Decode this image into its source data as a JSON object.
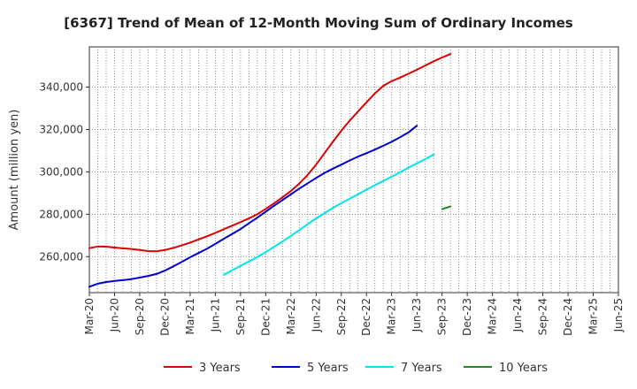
{
  "chart_data": {
    "type": "line",
    "title": "[6367]  Trend of Mean of 12-Month Moving Sum of Ordinary Incomes",
    "xlabel": "",
    "ylabel": "Amount (million yen)",
    "ylim": [
      243000,
      359000
    ],
    "yticks": [
      260000,
      280000,
      300000,
      320000,
      340000
    ],
    "ytick_labels": [
      "260,000",
      "280,000",
      "300,000",
      "320,000",
      "340,000"
    ],
    "xtick_labels": [
      "Mar-20",
      "Jun-20",
      "Sep-20",
      "Dec-20",
      "Mar-21",
      "Jun-21",
      "Sep-21",
      "Dec-21",
      "Mar-22",
      "Jun-22",
      "Sep-22",
      "Dec-22",
      "Mar-23",
      "Jun-23",
      "Sep-23",
      "Dec-23",
      "Mar-24",
      "Jun-24",
      "Sep-24",
      "Dec-24",
      "Mar-25",
      "Jun-25"
    ],
    "grid": true,
    "legend_position": "bottom",
    "series": [
      {
        "name": "3 Years",
        "color": "#dd0000",
        "points": [
          [
            0,
            264000
          ],
          [
            1,
            264800
          ],
          [
            2,
            264700
          ],
          [
            3,
            264300
          ],
          [
            4,
            263900
          ],
          [
            5,
            263600
          ],
          [
            6,
            263100
          ],
          [
            7,
            262600
          ],
          [
            8,
            262500
          ],
          [
            9,
            263100
          ],
          [
            10,
            264100
          ],
          [
            11,
            265300
          ],
          [
            12,
            266600
          ],
          [
            13,
            268100
          ],
          [
            14,
            269600
          ],
          [
            15,
            271200
          ],
          [
            16,
            272900
          ],
          [
            17,
            274600
          ],
          [
            18,
            276300
          ],
          [
            19,
            278000
          ],
          [
            20,
            280000
          ],
          [
            21,
            282500
          ],
          [
            22,
            285200
          ],
          [
            23,
            288000
          ],
          [
            24,
            291000
          ],
          [
            25,
            294500
          ],
          [
            26,
            298600
          ],
          [
            27,
            303400
          ],
          [
            28,
            308800
          ],
          [
            29,
            314200
          ],
          [
            30,
            319400
          ],
          [
            31,
            324200
          ],
          [
            32,
            328500
          ],
          [
            33,
            332800
          ],
          [
            34,
            337000
          ],
          [
            35,
            340600
          ],
          [
            36,
            342800
          ],
          [
            37,
            344500
          ],
          [
            38,
            346300
          ],
          [
            39,
            348200
          ],
          [
            40,
            350200
          ],
          [
            41,
            352200
          ],
          [
            42,
            354000
          ],
          [
            43,
            355600
          ]
        ]
      },
      {
        "name": "5 Years",
        "color": "#0000cc",
        "points": [
          [
            0,
            245800
          ],
          [
            1,
            247200
          ],
          [
            2,
            248000
          ],
          [
            3,
            248500
          ],
          [
            4,
            248900
          ],
          [
            5,
            249400
          ],
          [
            6,
            250100
          ],
          [
            7,
            250900
          ],
          [
            8,
            251800
          ],
          [
            9,
            253400
          ],
          [
            10,
            255400
          ],
          [
            11,
            257500
          ],
          [
            12,
            259700
          ],
          [
            13,
            261700
          ],
          [
            14,
            263700
          ],
          [
            15,
            266000
          ],
          [
            16,
            268400
          ],
          [
            17,
            270700
          ],
          [
            18,
            273000
          ],
          [
            19,
            275700
          ],
          [
            20,
            278400
          ],
          [
            21,
            281200
          ],
          [
            22,
            284000
          ],
          [
            23,
            286700
          ],
          [
            24,
            289400
          ],
          [
            25,
            292100
          ],
          [
            26,
            294600
          ],
          [
            27,
            297100
          ],
          [
            28,
            299500
          ],
          [
            29,
            301500
          ],
          [
            30,
            303400
          ],
          [
            31,
            305400
          ],
          [
            32,
            307200
          ],
          [
            33,
            308800
          ],
          [
            34,
            310500
          ],
          [
            35,
            312300
          ],
          [
            36,
            314200
          ],
          [
            37,
            316300
          ],
          [
            38,
            318600
          ],
          [
            39,
            321800
          ]
        ]
      },
      {
        "name": "7 Years",
        "color": "#00e5ee",
        "points": [
          [
            16,
            251400
          ],
          [
            17,
            253500
          ],
          [
            18,
            255600
          ],
          [
            19,
            257700
          ],
          [
            20,
            259800
          ],
          [
            21,
            262100
          ],
          [
            22,
            264600
          ],
          [
            23,
            267100
          ],
          [
            24,
            269800
          ],
          [
            25,
            272500
          ],
          [
            26,
            275300
          ],
          [
            27,
            278000
          ],
          [
            28,
            280500
          ],
          [
            29,
            283000
          ],
          [
            30,
            285200
          ],
          [
            31,
            287300
          ],
          [
            32,
            289400
          ],
          [
            33,
            291600
          ],
          [
            34,
            293700
          ],
          [
            35,
            295700
          ],
          [
            36,
            297700
          ],
          [
            37,
            299800
          ],
          [
            38,
            302000
          ],
          [
            39,
            304000
          ],
          [
            40,
            306000
          ],
          [
            41,
            308200
          ]
        ]
      },
      {
        "name": "10 Years",
        "color": "#228822",
        "points": [
          [
            42,
            282400
          ],
          [
            43,
            283700
          ]
        ]
      }
    ]
  }
}
